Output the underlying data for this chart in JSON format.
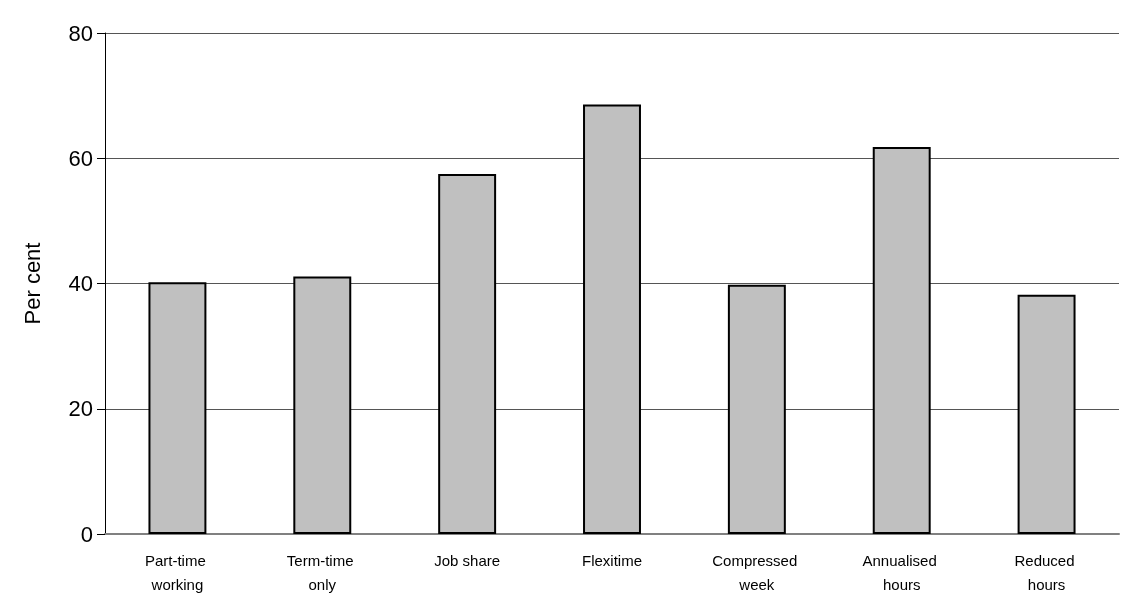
{
  "chart_data": {
    "type": "bar",
    "ylabel": "Per cent",
    "categories": [
      "Part-time working",
      "Term-time only",
      "Job share",
      "Flexitime",
      "Compressed week",
      "Annualised hours",
      "Reduced hours"
    ],
    "values": [
      40.2,
      41.1,
      57.5,
      68.6,
      39.8,
      61.8,
      38.2
    ],
    "color": "#c0c0c0",
    "ylim": [
      0,
      80
    ],
    "yticks": [
      0,
      20,
      40,
      60,
      80
    ],
    "grid": "y"
  }
}
